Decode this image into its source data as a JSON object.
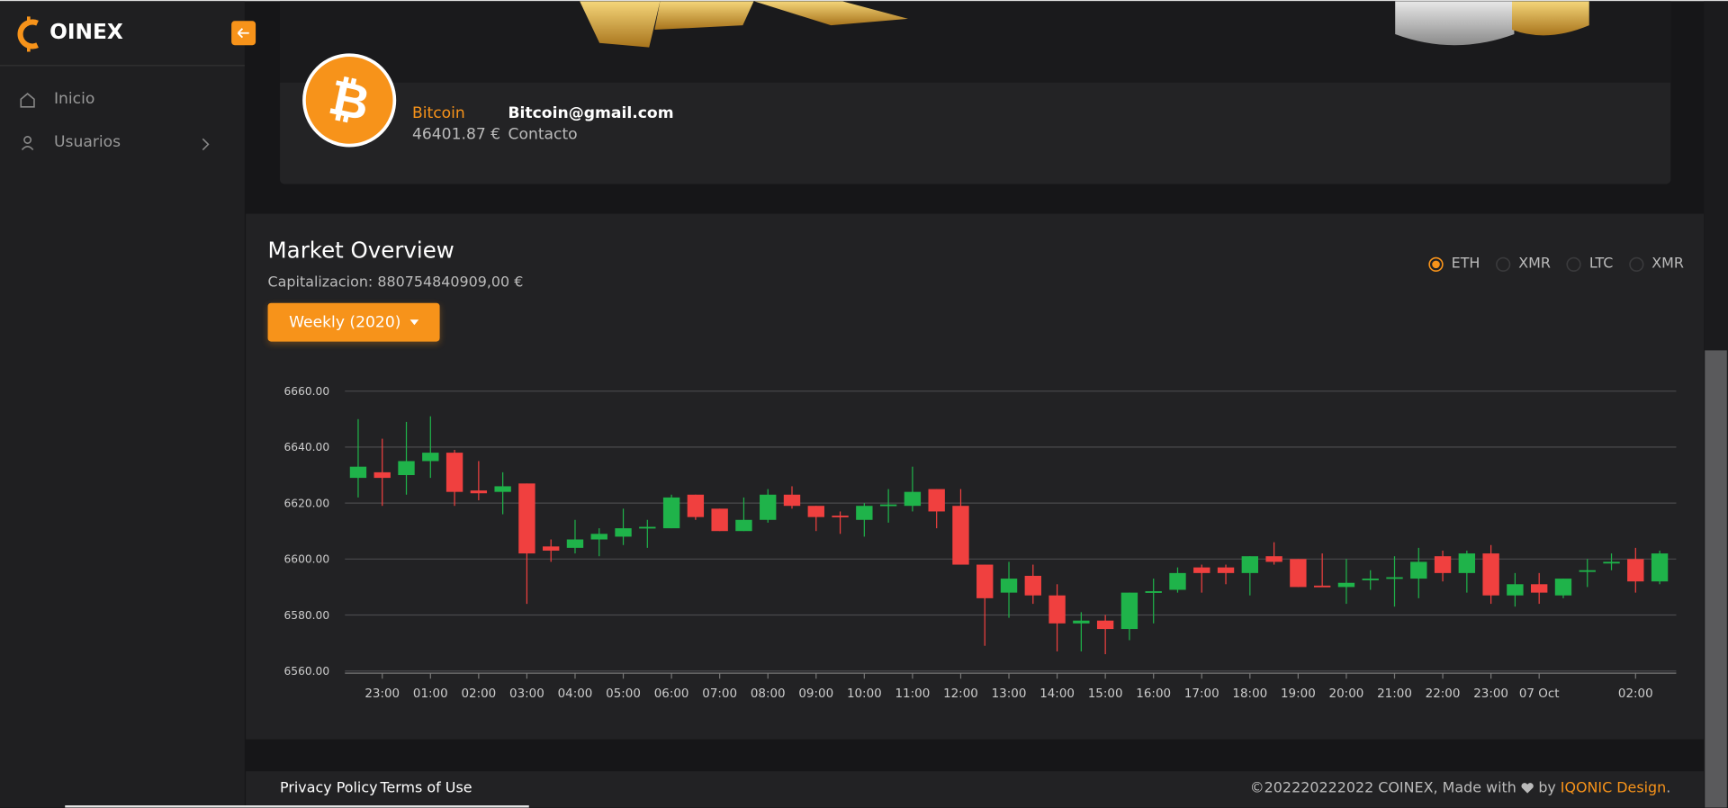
{
  "sidebar": {
    "logo": "OINEX",
    "menu": [
      "Inicio",
      "Usuarios"
    ]
  },
  "profile": {
    "name": "Bitcoin",
    "balance": "46401.87 €",
    "email": "Bitcoin@gmail.com",
    "contact": "Contacto"
  },
  "market": {
    "title": "Market Overview",
    "cap": "Capitalizacion: 880754840909,00 €",
    "period": "Weekly (2020)",
    "options": [
      "ETH",
      "XMR",
      "LTC",
      "XMR"
    ],
    "selected_option": 0
  },
  "chart_data": {
    "type": "candlestick",
    "categories": [
      null,
      "23:00",
      null,
      "01:00",
      null,
      "02:00",
      null,
      "03:00",
      null,
      "04:00",
      null,
      "05:00",
      null,
      "06:00",
      null,
      "07:00",
      null,
      "08:00",
      null,
      "09:00",
      null,
      "10:00",
      null,
      "11:00",
      null,
      "12:00",
      null,
      "13:00",
      null,
      "14:00",
      null,
      "15:00",
      null,
      "16:00",
      null,
      "17:00",
      null,
      "18:00",
      null,
      "19:00",
      null,
      "20:00",
      null,
      "21:00",
      null,
      "22:00",
      null,
      "23:00",
      null,
      "07 Oct",
      null,
      null,
      null,
      "02:00",
      null
    ],
    "open": [
      6629,
      6631,
      6630,
      6635,
      6638,
      6624.5,
      6624,
      6627,
      6604.5,
      6604,
      6607,
      6608,
      6611,
      6611,
      6623,
      6618,
      6610,
      6614,
      6623,
      6619,
      6615.5,
      6614,
      6619,
      6619,
      6625,
      6619,
      6598,
      6588,
      6594,
      6587,
      6577,
      6578,
      6575,
      6588,
      6589,
      6597,
      6597,
      6595,
      6601,
      6600,
      6590.5,
      6590,
      6592.5,
      6593,
      6593,
      6601,
      6595,
      6602,
      6587,
      6591,
      6587,
      6595.5,
      6598.5,
      6600,
      6592
    ],
    "high": [
      6650,
      6643,
      6649,
      6651,
      6639,
      6635,
      6631,
      6627,
      6607,
      6614,
      6611,
      6618,
      6614,
      6623,
      6623,
      6618,
      6622,
      6625,
      6626,
      6619,
      6617,
      6620,
      6625,
      6633,
      6625,
      6625,
      6598,
      6599,
      6598,
      6591,
      6581,
      6580,
      6588,
      6593,
      6597,
      6598,
      6598,
      6601,
      6606,
      6600,
      6602,
      6600,
      6596,
      6601,
      6604,
      6603,
      6603,
      6605,
      6595,
      6595,
      6593,
      6600,
      6602,
      6604,
      6603
    ],
    "low": [
      6622,
      6619,
      6623,
      6629,
      6619,
      6621,
      6616,
      6584,
      6599,
      6602,
      6601,
      6605,
      6604,
      6611,
      6614,
      6610,
      6610,
      6613,
      6618,
      6610,
      6609,
      6608,
      6613,
      6617,
      6611,
      6598,
      6569,
      6579,
      6584,
      6567,
      6567,
      6566,
      6571,
      6577,
      6588,
      6588,
      6591,
      6587,
      6598,
      6590,
      6590,
      6584,
      6589,
      6583,
      6586,
      6592,
      6588,
      6584,
      6583,
      6584,
      6586,
      6590,
      6596,
      6588,
      6591
    ],
    "close": [
      6633,
      6629,
      6635,
      6638,
      6624,
      6623.5,
      6626,
      6602,
      6603,
      6607,
      6609,
      6611,
      6611.5,
      6622,
      6615,
      6610,
      6614,
      6623,
      6619,
      6615,
      6615,
      6619,
      6619.5,
      6624,
      6617,
      6598,
      6586,
      6593,
      6587,
      6577,
      6578,
      6575,
      6588,
      6588.5,
      6595,
      6595,
      6595,
      6601,
      6599,
      6590,
      6590,
      6591.5,
      6593,
      6593.5,
      6599,
      6595,
      6602,
      6587,
      6591,
      6588,
      6593,
      6596,
      6599,
      6592,
      6602
    ],
    "up_color": "#1fb34a",
    "down_color": "#f0403f",
    "ylim": [
      6560,
      6660
    ],
    "yticks": [
      {
        "value": 6560,
        "label": "6560.00"
      },
      {
        "value": 6580,
        "label": "6580.00"
      },
      {
        "value": 6600,
        "label": "6600.00"
      },
      {
        "value": 6620,
        "label": "6620.00"
      },
      {
        "value": 6640,
        "label": "6640.00"
      },
      {
        "value": 6660,
        "label": "6660.00"
      }
    ],
    "grid": true
  },
  "footer": {
    "links": [
      "Privacy Policy",
      "Terms of Use"
    ],
    "copyright": "©202220222022 COINEX, Made with",
    "by": "by",
    "brand": "IQONIC Design",
    "end": "."
  }
}
